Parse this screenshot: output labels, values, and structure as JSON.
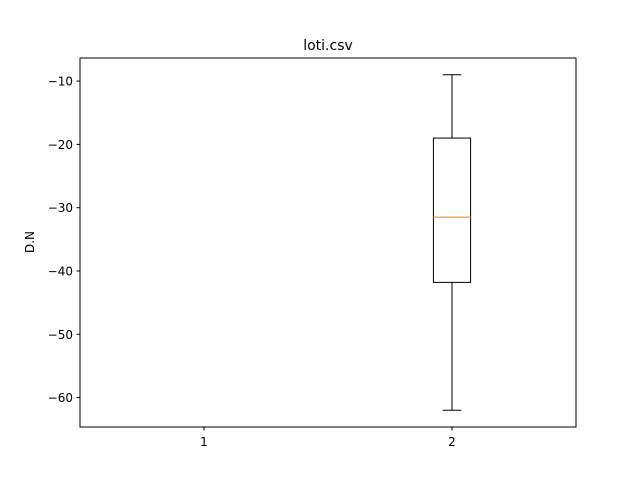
{
  "chart_data": {
    "type": "boxplot",
    "title": "loti.csv",
    "xlabel": "",
    "ylabel": "D.N",
    "categories": [
      "1",
      "2"
    ],
    "boxes": [
      {
        "category": "1",
        "whisker_low": null,
        "q1": null,
        "median": null,
        "q3": null,
        "whisker_high": null
      },
      {
        "category": "2",
        "whisker_low": -62,
        "q1": -41.8,
        "median": -31.5,
        "q3": -19,
        "whisker_high": -9
      }
    ],
    "yticks": [
      -60,
      -50,
      -40,
      -30,
      -20,
      -10
    ],
    "ytick_labels": [
      "−60",
      "−50",
      "−40",
      "−30",
      "−20",
      "−10"
    ],
    "ylim": [
      -64.65,
      -6.35
    ],
    "xlim": [
      0.5,
      2.5
    ],
    "grid": false,
    "colors": {
      "box": "#000000",
      "median": "#ff7f0e",
      "axes": "#000000",
      "background": "#ffffff"
    }
  }
}
